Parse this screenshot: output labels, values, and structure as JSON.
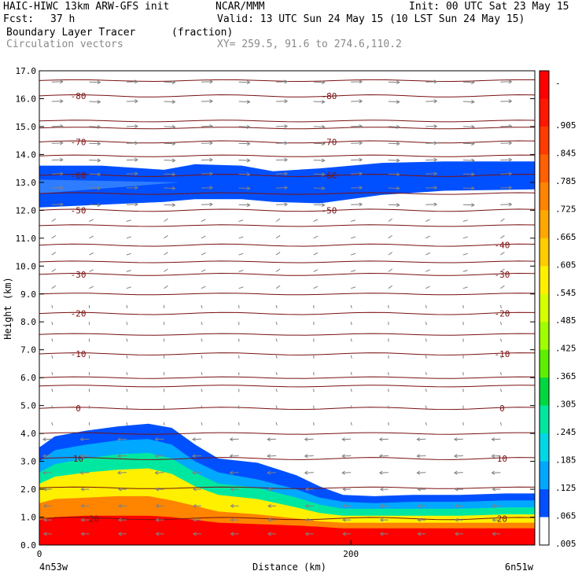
{
  "header": {
    "model": "HAIC-HIWC 13km ARW-GFS init",
    "org": "NCAR/MMM",
    "init": "Init: 00 UTC Sat 23 May 15",
    "fcst_label": "Fcst:",
    "fcst_value": "37 h",
    "valid": "Valid: 13 UTC Sun 24 May 15 (10 LST Sun 24 May 15)",
    "field": "Boundary Layer Tracer",
    "field_units": "(fraction)",
    "overlay": "Circulation vectors",
    "xy": "XY= 259.5, 91.6 to 274.6,110.2"
  },
  "chart_data": {
    "type": "heatmap",
    "title": "Boundary Layer Tracer",
    "units": "(fraction)",
    "ylabel": "Height (km)",
    "xlabel": "Distance (km)",
    "ylim": [
      0,
      17
    ],
    "xlim": [
      0,
      318
    ],
    "y_ticks": [
      "0.0",
      "1.0",
      "2.0",
      "3.0",
      "4.0",
      "5.0",
      "6.0",
      "7.0",
      "8.0",
      "9.0",
      "10.0",
      "11.0",
      "12.0",
      "13.0",
      "14.0",
      "15.0",
      "16.0",
      "17.0"
    ],
    "x_ticks": [
      {
        "value": 0,
        "label": "0"
      },
      {
        "value": 200,
        "label": "200"
      }
    ],
    "x_end_labels": {
      "left": "4n53w",
      "right": "6n51w"
    },
    "colorbar": {
      "labels": [
        "-",
        ".905",
        ".845",
        ".785",
        ".725",
        ".665",
        ".605",
        ".545",
        ".485",
        ".425",
        ".365",
        ".305",
        ".245",
        ".185",
        ".125",
        ".065",
        ".005"
      ],
      "colors": [
        "#ff0000",
        "#ff1800",
        "#ff3c00",
        "#ff6000",
        "#ff8400",
        "#ffa800",
        "#ffcc00",
        "#fff000",
        "#d8ff00",
        "#a0ff00",
        "#5cf000",
        "#00d840",
        "#00e8a0",
        "#00d8e8",
        "#00a8ff",
        "#0050ff",
        "#ffffff"
      ]
    },
    "bl_top_km": {
      "x": [
        0,
        10,
        30,
        50,
        70,
        85,
        100,
        115,
        140,
        165,
        180,
        195,
        215,
        240,
        270,
        300,
        318
      ],
      "outer": [
        3.5,
        3.9,
        4.1,
        4.25,
        4.35,
        4.2,
        3.6,
        3.1,
        2.95,
        2.5,
        2.1,
        1.8,
        1.75,
        1.8,
        1.8,
        1.85,
        1.85
      ],
      "mid": [
        3.0,
        3.4,
        3.6,
        3.75,
        3.8,
        3.6,
        3.0,
        2.6,
        2.35,
        2.0,
        1.7,
        1.55,
        1.5,
        1.55,
        1.55,
        1.6,
        1.6
      ],
      "inner": [
        2.6,
        2.9,
        3.1,
        3.25,
        3.3,
        3.1,
        2.6,
        2.2,
        2.05,
        1.7,
        1.45,
        1.3,
        1.3,
        1.3,
        1.3,
        1.35,
        1.35
      ],
      "yellow": [
        2.2,
        2.45,
        2.6,
        2.7,
        2.75,
        2.55,
        2.1,
        1.8,
        1.65,
        1.35,
        1.15,
        1.05,
        1.05,
        1.05,
        1.05,
        1.1,
        1.1
      ],
      "orange": [
        1.5,
        1.65,
        1.7,
        1.75,
        1.75,
        1.6,
        1.4,
        1.2,
        1.1,
        0.95,
        0.85,
        0.8,
        0.8,
        0.8,
        0.8,
        0.8,
        0.8
      ],
      "red": [
        0.9,
        1.0,
        1.05,
        1.05,
        1.05,
        1.0,
        0.9,
        0.8,
        0.75,
        0.7,
        0.65,
        0.6,
        0.6,
        0.6,
        0.6,
        0.6,
        0.6
      ]
    },
    "upper_layer_km": {
      "x": [
        0,
        40,
        80,
        100,
        130,
        150,
        180,
        220,
        260,
        318
      ],
      "top": [
        13.6,
        13.6,
        13.45,
        13.65,
        13.6,
        13.4,
        13.5,
        13.7,
        13.75,
        13.75
      ],
      "bottom": [
        12.1,
        12.2,
        12.3,
        12.4,
        12.4,
        12.3,
        12.25,
        12.55,
        12.7,
        12.75
      ]
    },
    "temperature_contours": [
      {
        "label": "-80",
        "y": 16.1,
        "label_x": [
          25,
          186
        ]
      },
      {
        "label": "-70",
        "y": 14.45,
        "label_x": [
          25,
          186
        ]
      },
      {
        "label": "-60",
        "y": 13.25,
        "label_x": [
          25,
          186
        ]
      },
      {
        "label": "-50",
        "y": 12.0,
        "label_x": [
          25,
          186
        ]
      },
      {
        "label": "-40",
        "y": 10.75,
        "label_x": [
          297
        ]
      },
      {
        "label": "-30",
        "y": 9.7,
        "label_x": [
          25,
          297
        ]
      },
      {
        "label": "-20",
        "y": 8.3,
        "label_x": [
          25,
          297
        ]
      },
      {
        "label": "-10",
        "y": 6.85,
        "label_x": [
          25,
          297
        ]
      },
      {
        "label": "0",
        "y": 4.9,
        "label_x": [
          25,
          297
        ]
      },
      {
        "label": "10",
        "y": 3.1,
        "label_x": [
          25,
          297
        ]
      },
      {
        "label": "20",
        "y": 0.95,
        "label_x": [
          35,
          297
        ]
      }
    ],
    "extra_contours_km": [
      16.65,
      15.2,
      14.95,
      13.95,
      12.6,
      11.45,
      10.15,
      9.0,
      7.55,
      6.0,
      5.7,
      4.0,
      2.05
    ],
    "vector_rows_km": [
      16.6,
      15.9,
      15.0,
      14.4,
      13.8,
      13.3,
      12.8,
      12.2,
      11.6,
      11.0,
      10.4,
      9.8,
      9.2,
      8.6,
      8.0,
      7.4,
      6.8,
      6.2,
      5.6,
      5.0,
      4.4,
      3.8,
      3.2,
      2.6,
      2.0,
      1.4,
      0.9,
      0.4
    ],
    "vector_cols_km": [
      8,
      32,
      56,
      80,
      104,
      128,
      152,
      176,
      200,
      224,
      248,
      272,
      296
    ]
  }
}
